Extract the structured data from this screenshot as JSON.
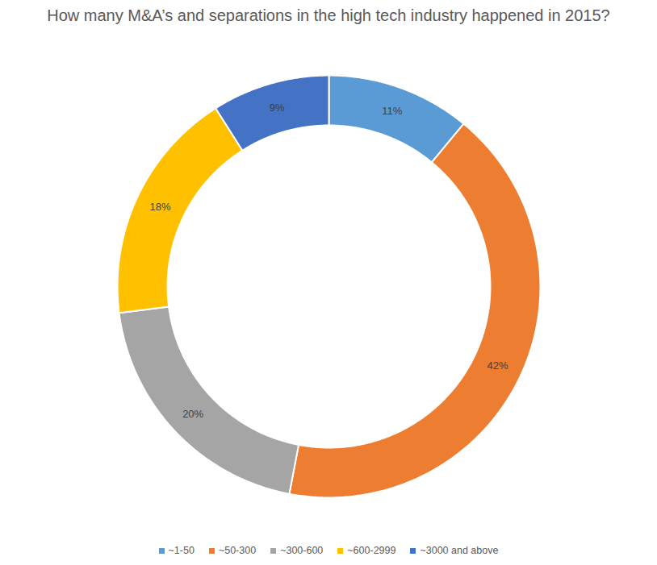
{
  "chart_data": {
    "type": "donut",
    "title": "How many M&A’s and separations in the high tech industry happened in 2015?",
    "categories": [
      "~1-50",
      "~50-300",
      "~300-600",
      "~600-2999",
      "~3000 and above"
    ],
    "values": [
      11,
      42,
      20,
      18,
      9
    ],
    "value_labels": [
      "11%",
      "42%",
      "20%",
      "18%",
      "9%"
    ],
    "colors": [
      "#5b9bd5",
      "#ed7d31",
      "#a5a5a5",
      "#ffc000",
      "#4472c4"
    ],
    "data_labels": true,
    "legend": "bottom"
  }
}
